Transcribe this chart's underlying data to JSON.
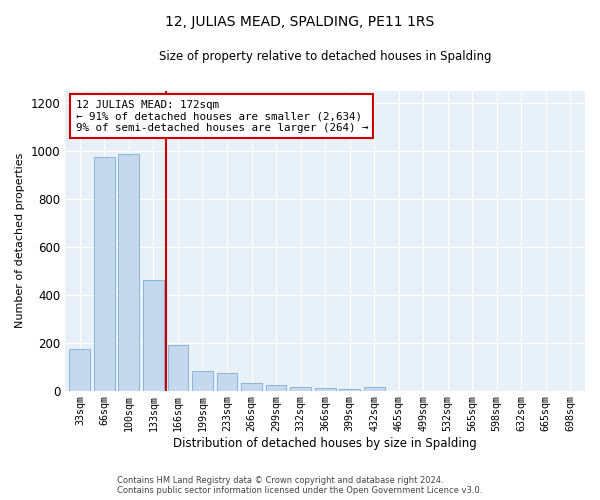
{
  "title": "12, JULIAS MEAD, SPALDING, PE11 1RS",
  "subtitle": "Size of property relative to detached houses in Spalding",
  "xlabel": "Distribution of detached houses by size in Spalding",
  "ylabel": "Number of detached properties",
  "bar_color": "#c5d8ed",
  "bar_edge_color": "#7bafd4",
  "background_color": "#e8f0f8",
  "categories": [
    "33sqm",
    "66sqm",
    "100sqm",
    "133sqm",
    "166sqm",
    "199sqm",
    "233sqm",
    "266sqm",
    "299sqm",
    "332sqm",
    "366sqm",
    "399sqm",
    "432sqm",
    "465sqm",
    "499sqm",
    "532sqm",
    "565sqm",
    "598sqm",
    "632sqm",
    "665sqm",
    "698sqm"
  ],
  "values": [
    175,
    975,
    985,
    460,
    190,
    80,
    75,
    30,
    25,
    15,
    10,
    5,
    15,
    0,
    0,
    0,
    0,
    0,
    0,
    0,
    0
  ],
  "property_line_x": 3.5,
  "property_line_color": "#cc0000",
  "annotation_text": "12 JULIAS MEAD: 172sqm\n← 91% of detached houses are smaller (2,634)\n9% of semi-detached houses are larger (264) →",
  "annotation_box_color": "#ffffff",
  "annotation_box_edge_color": "#cc0000",
  "ylim": [
    0,
    1250
  ],
  "yticks": [
    0,
    200,
    400,
    600,
    800,
    1000,
    1200
  ],
  "footer_line1": "Contains HM Land Registry data © Crown copyright and database right 2024.",
  "footer_line2": "Contains public sector information licensed under the Open Government Licence v3.0."
}
